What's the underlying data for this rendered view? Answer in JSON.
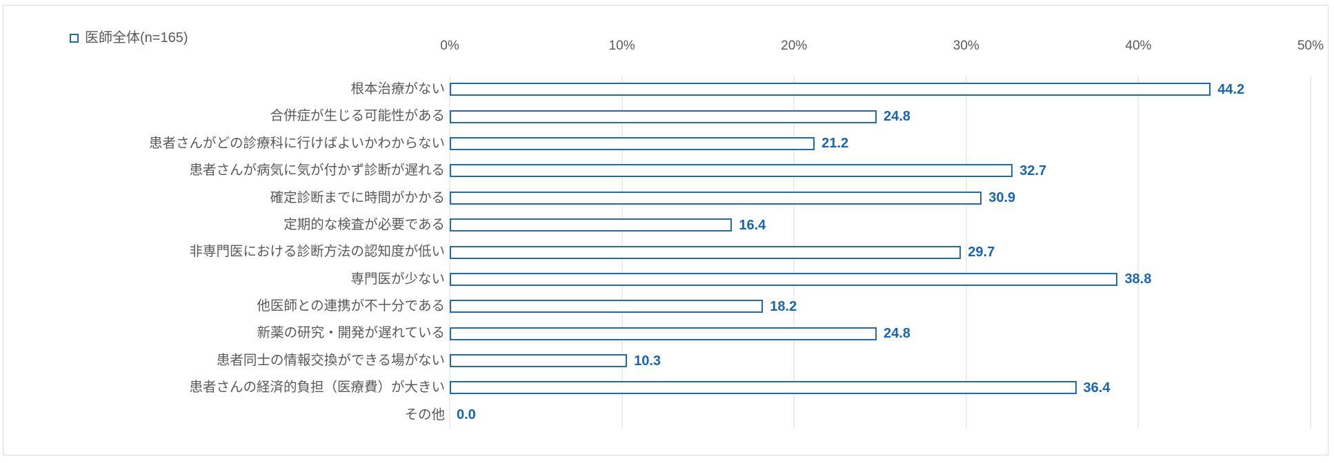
{
  "legend": {
    "label": "医師全体(n=165)",
    "marker": "hollow-square"
  },
  "colors": {
    "accent": "#1C6BB0",
    "value_label": "#1565B5",
    "gridline": "#D9D9D9",
    "frame_border": "#D9D9D9",
    "text": "#595959",
    "background": "#FFFFFF"
  },
  "chart_data": {
    "type": "bar",
    "orientation": "horizontal",
    "title": "",
    "xlabel": "",
    "ylabel": "",
    "legend_position": "top-left",
    "legend_entries": [
      "医師全体(n=165)"
    ],
    "bar_style": "hollow-outline",
    "grid": true,
    "xlim": [
      0,
      50
    ],
    "x_ticks": [
      "0%",
      "10%",
      "20%",
      "30%",
      "40%",
      "50%"
    ],
    "categories": [
      "根本治療がない",
      "合併症が生じる可能性がある",
      "患者さんがどの診療科に行けばよいかわからない",
      "患者さんが病気に気が付かず診断が遅れる",
      "確定診断までに時間がかかる",
      "定期的な検査が必要である",
      "非専門医における診断方法の認知度が低い",
      "専門医が少ない",
      "他医師との連携が不十分である",
      "新薬の研究・開発が遅れている",
      "患者同士の情報交換ができる場がない",
      "患者さんの経済的負担（医療費）が大きい",
      "その他"
    ],
    "values": [
      44.2,
      24.8,
      21.2,
      32.7,
      30.9,
      16.4,
      29.7,
      38.8,
      18.2,
      24.8,
      10.3,
      36.4,
      0.0
    ],
    "value_labels": [
      "44.2",
      "24.8",
      "21.2",
      "32.7",
      "30.9",
      "16.4",
      "29.7",
      "38.8",
      "18.2",
      "24.8",
      "10.3",
      "36.4",
      "0.0"
    ]
  }
}
